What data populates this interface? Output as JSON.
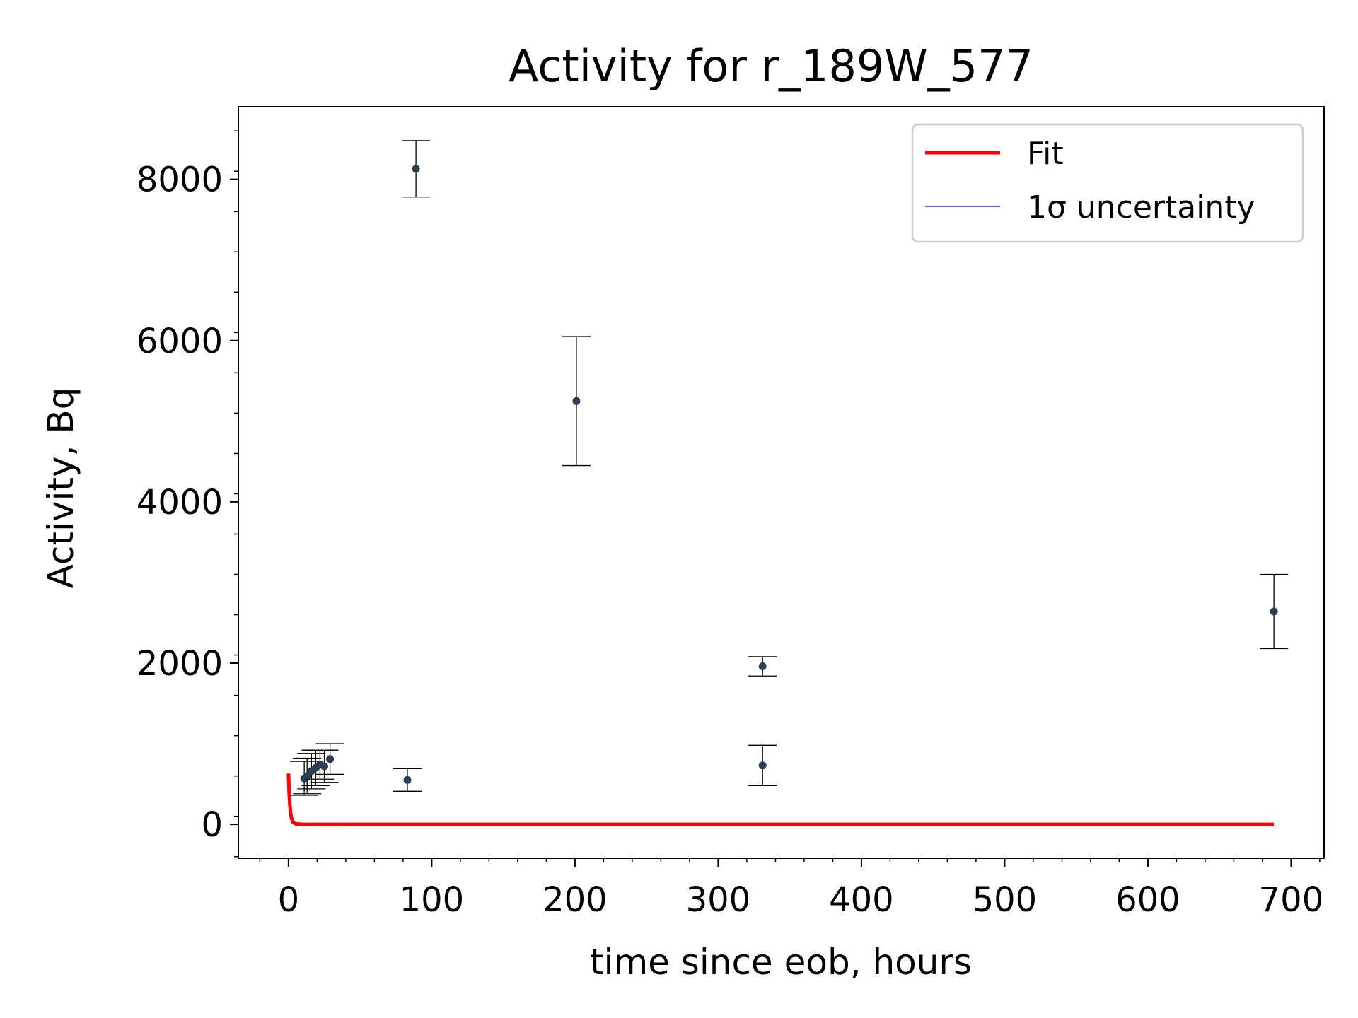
{
  "chart_data": {
    "type": "scatter",
    "title": "Activity for r_189W_577",
    "xlabel": "time since eob, hours",
    "ylabel": "Activity, Bq",
    "xlim": [
      -35,
      723
    ],
    "ylim": [
      -420,
      8900
    ],
    "x_ticks": [
      0,
      100,
      200,
      300,
      400,
      500,
      600,
      700
    ],
    "y_ticks": [
      0,
      2000,
      4000,
      6000,
      8000
    ],
    "x_tick_labels": [
      "0",
      "100",
      "200",
      "300",
      "400",
      "500",
      "600",
      "700"
    ],
    "y_tick_labels": [
      "0",
      "2000",
      "4000",
      "6000",
      "8000"
    ],
    "grid": false,
    "legend_position": "top-right",
    "legend": [
      {
        "label": "Fit",
        "color": "#ff0000"
      },
      {
        "label": "1σ uncertainty",
        "color": "#0000ff"
      }
    ],
    "point_color": "#2c3e50",
    "errorbar_color": "#000000",
    "points": [
      {
        "x": 11,
        "y": 570,
        "err": 210
      },
      {
        "x": 13,
        "y": 600,
        "err": 220
      },
      {
        "x": 16,
        "y": 660,
        "err": 220
      },
      {
        "x": 19,
        "y": 700,
        "err": 220
      },
      {
        "x": 22,
        "y": 740,
        "err": 180
      },
      {
        "x": 25,
        "y": 720,
        "err": 200
      },
      {
        "x": 29,
        "y": 810,
        "err": 190
      },
      {
        "x": 83,
        "y": 550,
        "err": 140
      },
      {
        "x": 89,
        "y": 8130,
        "err": 350
      },
      {
        "x": 201,
        "y": 5250,
        "err": 800
      },
      {
        "x": 331,
        "y": 1960,
        "err": 120
      },
      {
        "x": 331,
        "y": 730,
        "err": 250
      },
      {
        "x": 688,
        "y": 2640,
        "err": 460
      }
    ],
    "fit_series": {
      "name": "Fit",
      "x": [
        0,
        0.2,
        0.5,
        1,
        1.5,
        2,
        3,
        5,
        10,
        50,
        200,
        400,
        688
      ],
      "y": [
        630,
        520,
        380,
        230,
        140,
        85,
        30,
        5,
        0.5,
        0,
        0,
        0,
        0
      ]
    }
  }
}
